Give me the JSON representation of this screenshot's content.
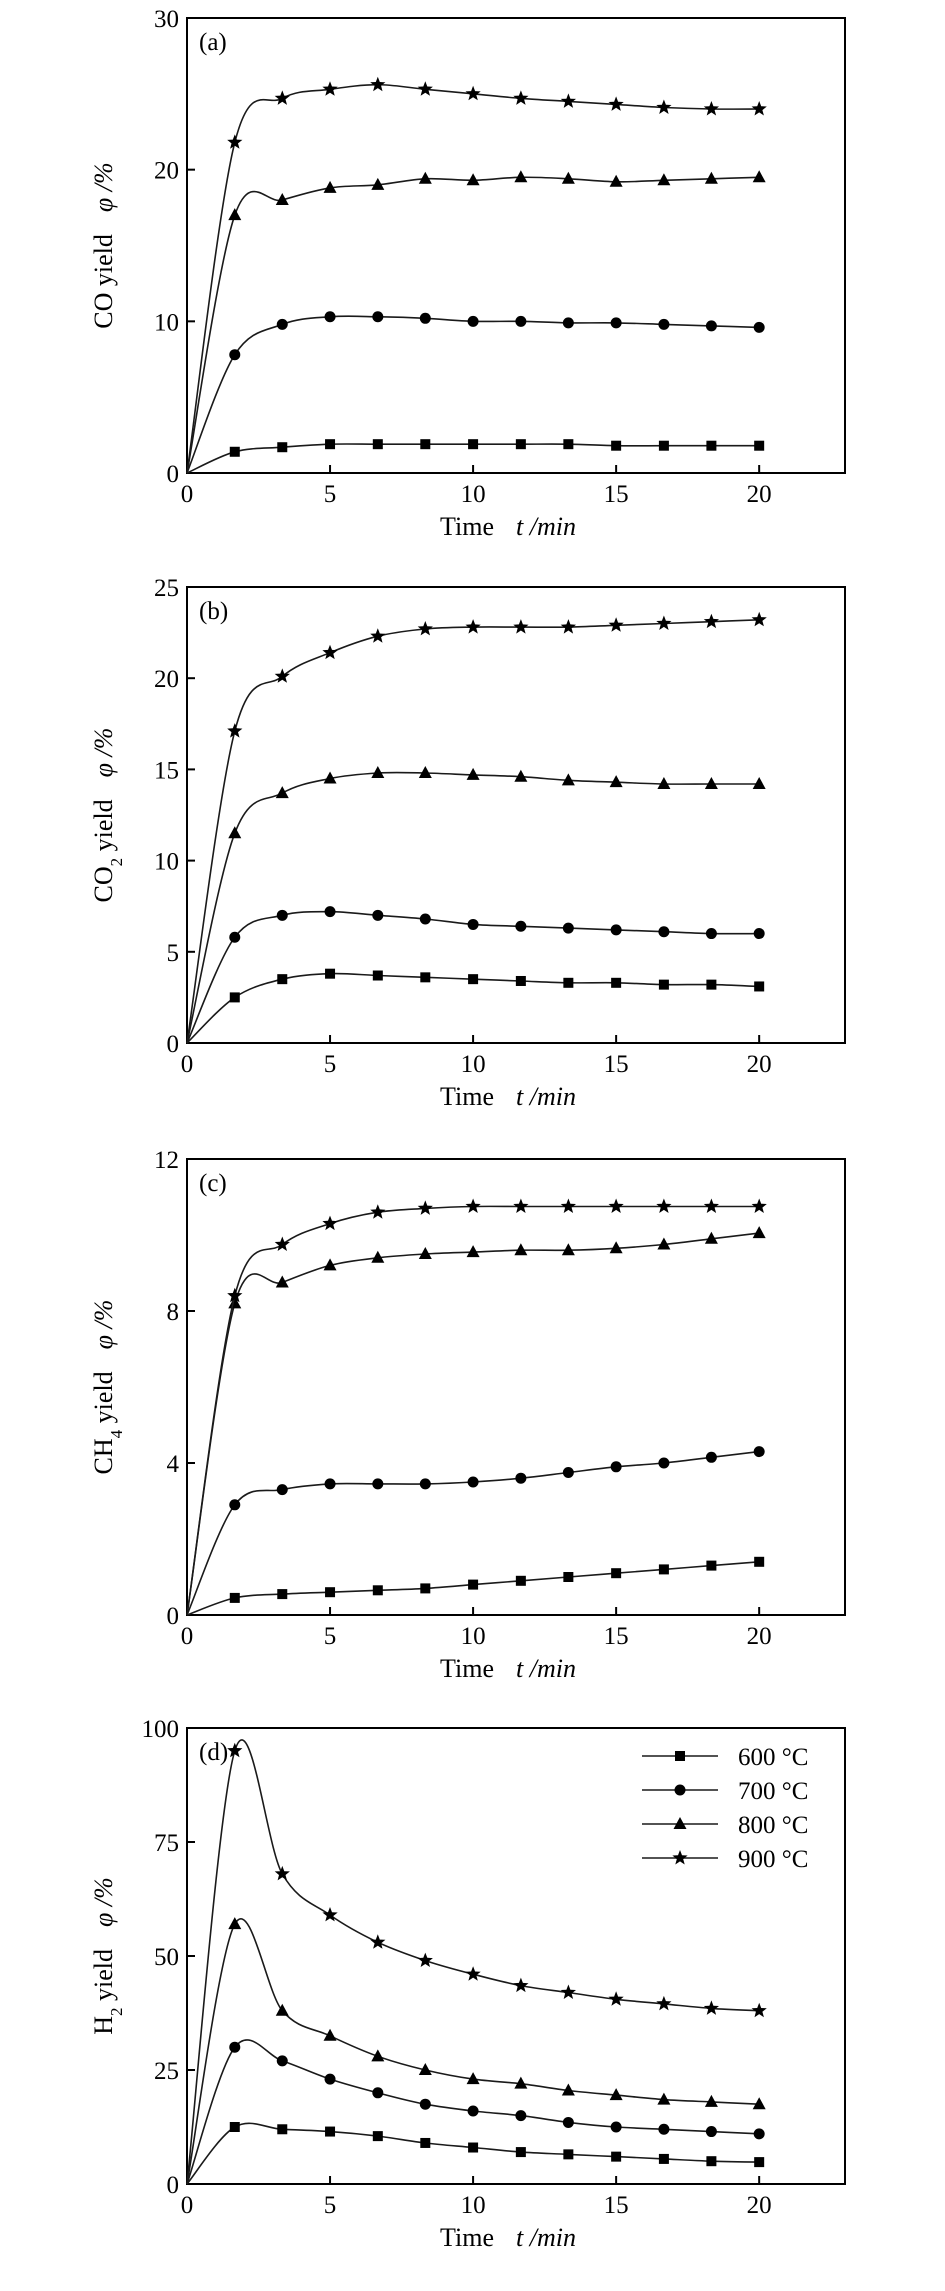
{
  "legend": {
    "entries": [
      "600 °C",
      "700 °C",
      "800 °C",
      "900 °C"
    ],
    "markers": [
      "square",
      "circle",
      "triangle",
      "star"
    ]
  },
  "chart_data": [
    {
      "type": "line",
      "panel_label": "(a)",
      "ylabel_main": "CO yield",
      "ylabel_sub": "",
      "ylabel_after": " yield",
      "ylabel_symbol": "φ /%",
      "xlabel_main": "Time",
      "xlabel_symbol": "t /min",
      "xlim": [
        0,
        23
      ],
      "ylim": [
        0,
        30
      ],
      "xticks": [
        0,
        5,
        10,
        15,
        20
      ],
      "yticks": [
        0,
        10,
        20,
        30
      ],
      "grid": false,
      "x": [
        0.0,
        1.67,
        3.33,
        5.0,
        6.67,
        8.33,
        10.0,
        11.67,
        13.33,
        15.0,
        16.67,
        18.33,
        20.0
      ],
      "series": [
        {
          "name": "600 °C",
          "marker": "square",
          "values": [
            0,
            1.4,
            1.7,
            1.9,
            1.9,
            1.9,
            1.9,
            1.9,
            1.9,
            1.8,
            1.8,
            1.8,
            1.8
          ]
        },
        {
          "name": "700 °C",
          "marker": "circle",
          "values": [
            0,
            7.8,
            9.8,
            10.3,
            10.3,
            10.2,
            10.0,
            10.0,
            9.9,
            9.9,
            9.8,
            9.7,
            9.6
          ]
        },
        {
          "name": "800 °C",
          "marker": "triangle",
          "values": [
            0,
            17.0,
            18.0,
            18.8,
            19.0,
            19.4,
            19.3,
            19.5,
            19.4,
            19.2,
            19.3,
            19.4,
            19.5
          ]
        },
        {
          "name": "900 °C",
          "marker": "star",
          "values": [
            0,
            21.8,
            24.7,
            25.3,
            25.6,
            25.3,
            25.0,
            24.7,
            24.5,
            24.3,
            24.1,
            24.0,
            24.0
          ]
        }
      ]
    },
    {
      "type": "line",
      "panel_label": "(b)",
      "ylabel_main": "CO",
      "ylabel_sub": "2",
      "ylabel_after": " yield",
      "ylabel_symbol": "φ /%",
      "xlabel_main": "Time",
      "xlabel_symbol": "t /min",
      "xlim": [
        0,
        23
      ],
      "ylim": [
        0,
        25
      ],
      "xticks": [
        0,
        5,
        10,
        15,
        20
      ],
      "yticks": [
        0,
        5,
        10,
        15,
        20,
        25
      ],
      "grid": false,
      "x": [
        0.0,
        1.67,
        3.33,
        5.0,
        6.67,
        8.33,
        10.0,
        11.67,
        13.33,
        15.0,
        16.67,
        18.33,
        20.0
      ],
      "series": [
        {
          "name": "600 °C",
          "marker": "square",
          "values": [
            0,
            2.5,
            3.5,
            3.8,
            3.7,
            3.6,
            3.5,
            3.4,
            3.3,
            3.3,
            3.2,
            3.2,
            3.1
          ]
        },
        {
          "name": "700 °C",
          "marker": "circle",
          "values": [
            0,
            5.8,
            7.0,
            7.2,
            7.0,
            6.8,
            6.5,
            6.4,
            6.3,
            6.2,
            6.1,
            6.0,
            6.0
          ]
        },
        {
          "name": "800 °C",
          "marker": "triangle",
          "values": [
            0,
            11.5,
            13.7,
            14.5,
            14.8,
            14.8,
            14.7,
            14.6,
            14.4,
            14.3,
            14.2,
            14.2,
            14.2
          ]
        },
        {
          "name": "900 °C",
          "marker": "star",
          "values": [
            0,
            17.1,
            20.1,
            21.4,
            22.3,
            22.7,
            22.8,
            22.8,
            22.8,
            22.9,
            23.0,
            23.1,
            23.2
          ]
        }
      ]
    },
    {
      "type": "line",
      "panel_label": "(c)",
      "ylabel_main": "CH",
      "ylabel_sub": "4",
      "ylabel_after": " yield",
      "ylabel_symbol": "φ /%",
      "xlabel_main": "Time",
      "xlabel_symbol": "t /min",
      "xlim": [
        0,
        23
      ],
      "ylim": [
        0,
        12
      ],
      "xticks": [
        0,
        5,
        10,
        15,
        20
      ],
      "yticks": [
        0,
        4,
        8,
        12
      ],
      "grid": false,
      "x": [
        0.0,
        1.67,
        3.33,
        5.0,
        6.67,
        8.33,
        10.0,
        11.67,
        13.33,
        15.0,
        16.67,
        18.33,
        20.0
      ],
      "series": [
        {
          "name": "600 °C",
          "marker": "square",
          "values": [
            0,
            0.45,
            0.55,
            0.6,
            0.65,
            0.7,
            0.8,
            0.9,
            1.0,
            1.1,
            1.2,
            1.3,
            1.4
          ]
        },
        {
          "name": "700 °C",
          "marker": "circle",
          "values": [
            0,
            2.9,
            3.3,
            3.45,
            3.45,
            3.45,
            3.5,
            3.6,
            3.75,
            3.9,
            4.0,
            4.15,
            4.3
          ]
        },
        {
          "name": "800 °C",
          "marker": "triangle",
          "values": [
            0,
            8.2,
            8.75,
            9.2,
            9.4,
            9.5,
            9.55,
            9.6,
            9.6,
            9.65,
            9.75,
            9.9,
            10.05
          ]
        },
        {
          "name": "900 °C",
          "marker": "star",
          "values": [
            0,
            8.4,
            9.75,
            10.3,
            10.6,
            10.7,
            10.75,
            10.75,
            10.75,
            10.75,
            10.75,
            10.75,
            10.75
          ]
        }
      ]
    },
    {
      "type": "line",
      "panel_label": "(d)",
      "ylabel_main": "H",
      "ylabel_sub": "2",
      "ylabel_after": " yield",
      "ylabel_symbol": "φ /%",
      "xlabel_main": "Time",
      "xlabel_symbol": "t /min",
      "xlim": [
        0,
        23
      ],
      "ylim": [
        0,
        100
      ],
      "xticks": [
        0,
        5,
        10,
        15,
        20
      ],
      "yticks": [
        0,
        25,
        50,
        75,
        100
      ],
      "grid": false,
      "legend": "top-right",
      "x": [
        0.0,
        1.67,
        3.33,
        5.0,
        6.67,
        8.33,
        10.0,
        11.67,
        13.33,
        15.0,
        16.67,
        18.33,
        20.0
      ],
      "series": [
        {
          "name": "600 °C",
          "marker": "square",
          "values": [
            0,
            12.5,
            12.0,
            11.5,
            10.5,
            9.0,
            8.0,
            7.0,
            6.5,
            6.0,
            5.5,
            5.0,
            4.8
          ]
        },
        {
          "name": "700 °C",
          "marker": "circle",
          "values": [
            0,
            30.0,
            27.0,
            23.0,
            20.0,
            17.5,
            16.0,
            15.0,
            13.5,
            12.5,
            12.0,
            11.5,
            11.0
          ]
        },
        {
          "name": "800 °C",
          "marker": "triangle",
          "values": [
            0,
            57.0,
            38.0,
            32.5,
            28.0,
            25.0,
            23.0,
            22.0,
            20.5,
            19.5,
            18.5,
            18.0,
            17.5
          ]
        },
        {
          "name": "900 °C",
          "marker": "star",
          "values": [
            0,
            95.0,
            68.0,
            59.0,
            53.0,
            49.0,
            46.0,
            43.5,
            42.0,
            40.5,
            39.5,
            38.5,
            38.0
          ]
        }
      ]
    }
  ]
}
